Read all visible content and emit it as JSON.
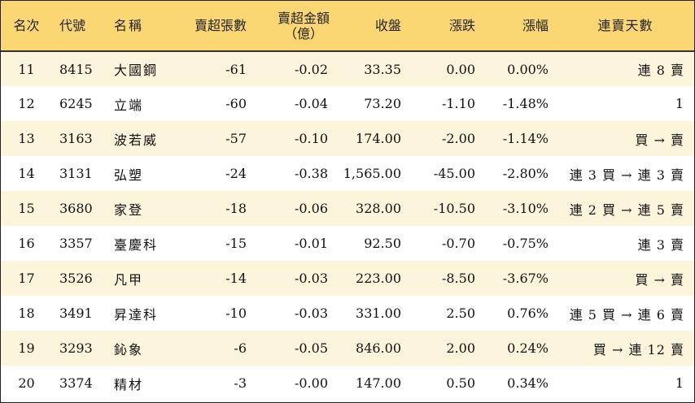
{
  "header": {
    "rank": "名次",
    "code": "代號",
    "name": "名稱",
    "sell_lots": "賣超張數",
    "sell_amount_line1": "賣超金額",
    "sell_amount_line2": "（億）",
    "close": "收盤",
    "change": "漲跌",
    "change_pct": "漲幅",
    "streak": "連賣天數"
  },
  "colors": {
    "header_bg": "#fbd774",
    "stripe_bg": "#fdf4dc",
    "up": "#e0141e",
    "down": "#1a8f1a"
  },
  "rows": [
    {
      "rank": "11",
      "code": "8415",
      "name": "大國鋼",
      "sell_lots": "-61",
      "sell_amount": "-0.02",
      "close": "33.35",
      "change": "0.00",
      "change_pct": "0.00%",
      "streak": "連 8 賣",
      "dir": "neutral"
    },
    {
      "rank": "12",
      "code": "6245",
      "name": "立端",
      "sell_lots": "-60",
      "sell_amount": "-0.04",
      "close": "73.20",
      "change": "-1.10",
      "change_pct": "-1.48%",
      "streak": "1",
      "dir": "down"
    },
    {
      "rank": "13",
      "code": "3163",
      "name": "波若威",
      "sell_lots": "-57",
      "sell_amount": "-0.10",
      "close": "174.00",
      "change": "-2.00",
      "change_pct": "-1.14%",
      "streak": "買 → 賣",
      "dir": "down"
    },
    {
      "rank": "14",
      "code": "3131",
      "name": "弘塑",
      "sell_lots": "-24",
      "sell_amount": "-0.38",
      "close": "1,565.00",
      "change": "-45.00",
      "change_pct": "-2.80%",
      "streak": "連 3 買 → 連 3 賣",
      "dir": "down"
    },
    {
      "rank": "15",
      "code": "3680",
      "name": "家登",
      "sell_lots": "-18",
      "sell_amount": "-0.06",
      "close": "328.00",
      "change": "-10.50",
      "change_pct": "-3.10%",
      "streak": "連 2 買 → 連 5 賣",
      "dir": "down"
    },
    {
      "rank": "16",
      "code": "3357",
      "name": "臺慶科",
      "sell_lots": "-15",
      "sell_amount": "-0.01",
      "close": "92.50",
      "change": "-0.70",
      "change_pct": "-0.75%",
      "streak": "連 3 賣",
      "dir": "down"
    },
    {
      "rank": "17",
      "code": "3526",
      "name": "凡甲",
      "sell_lots": "-14",
      "sell_amount": "-0.03",
      "close": "223.00",
      "change": "-8.50",
      "change_pct": "-3.67%",
      "streak": "買 → 賣",
      "dir": "down"
    },
    {
      "rank": "18",
      "code": "3491",
      "name": "昇達科",
      "sell_lots": "-10",
      "sell_amount": "-0.03",
      "close": "331.00",
      "change": "2.50",
      "change_pct": "0.76%",
      "streak": "連 5 買 → 連 6 賣",
      "dir": "up"
    },
    {
      "rank": "19",
      "code": "3293",
      "name": "鈊象",
      "sell_lots": "-6",
      "sell_amount": "-0.05",
      "close": "846.00",
      "change": "2.00",
      "change_pct": "0.24%",
      "streak": "買 → 連 12 賣",
      "dir": "up"
    },
    {
      "rank": "20",
      "code": "3374",
      "name": "精材",
      "sell_lots": "-3",
      "sell_amount": "-0.00",
      "close": "147.00",
      "change": "0.50",
      "change_pct": "0.34%",
      "streak": "1",
      "dir": "up"
    }
  ]
}
